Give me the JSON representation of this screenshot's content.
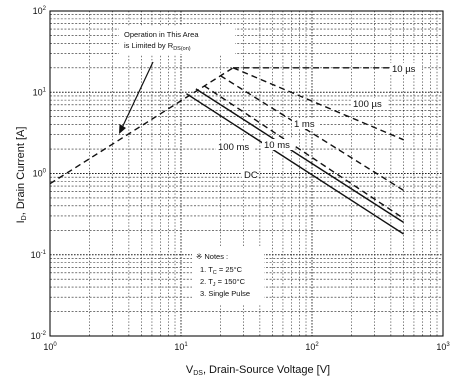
{
  "chart_data": {
    "type": "line",
    "x_scale": "log",
    "y_scale": "log",
    "xlim": [
      1,
      1000
    ],
    "ylim": [
      0.01,
      100
    ],
    "grid": true,
    "xlabel": {
      "main": "V",
      "sub": "DS",
      "rest": ", Drain-Source Voltage [V]"
    },
    "ylabel": {
      "main": "I",
      "sub": "D",
      "rest": ", Drain Current [A]"
    },
    "x_ticks": [
      {
        "value": 1,
        "base": "10",
        "exp": "0"
      },
      {
        "value": 10,
        "base": "10",
        "exp": "1"
      },
      {
        "value": 100,
        "base": "10",
        "exp": "2"
      },
      {
        "value": 1000,
        "base": "10",
        "exp": "3"
      }
    ],
    "y_ticks": [
      {
        "value": 0.01,
        "base": "10",
        "exp": "-2"
      },
      {
        "value": 0.1,
        "base": "10",
        "exp": "-1"
      },
      {
        "value": 1,
        "base": "10",
        "exp": "0"
      },
      {
        "value": 10,
        "base": "10",
        "exp": "1"
      },
      {
        "value": 100,
        "base": "10",
        "exp": "2"
      }
    ],
    "limit_line": {
      "style": "dashed",
      "points": [
        [
          1,
          0.75
        ],
        [
          25,
          20
        ]
      ]
    },
    "series": [
      {
        "name": "10 µs",
        "style": "dashed",
        "points": [
          [
            25,
            20
          ],
          [
            500,
            20
          ]
        ]
      },
      {
        "name": "100 µs",
        "style": "dashed",
        "points": [
          [
            25,
            20
          ],
          [
            500,
            2.6
          ]
        ]
      },
      {
        "name": "1 ms",
        "style": "dashed",
        "points": [
          [
            20,
            16
          ],
          [
            500,
            0.62
          ]
        ]
      },
      {
        "name": "10 ms",
        "style": "dashed",
        "points": [
          [
            15,
            12
          ],
          [
            500,
            0.28
          ]
        ]
      },
      {
        "name": "100 ms",
        "style": "solid",
        "points": [
          [
            13,
            11
          ],
          [
            500,
            0.25
          ]
        ]
      },
      {
        "name": "DC",
        "style": "solid",
        "points": [
          [
            11,
            9.6
          ],
          [
            500,
            0.18
          ]
        ]
      }
    ],
    "annotations": {
      "limit_region": {
        "line1": "Operation in This Area",
        "line2_main": "is Limited by R",
        "line2_sub": "DS(on)"
      },
      "notes": {
        "title": "※ Notes :",
        "items": [
          {
            "prefix": "1. T",
            "sub": "C",
            "rest": " = 25°C"
          },
          {
            "prefix": "2. T",
            "sub": "J",
            "rest": " = 150°C"
          },
          {
            "prefix": "3. Single Pulse",
            "sub": "",
            "rest": ""
          }
        ]
      }
    }
  }
}
